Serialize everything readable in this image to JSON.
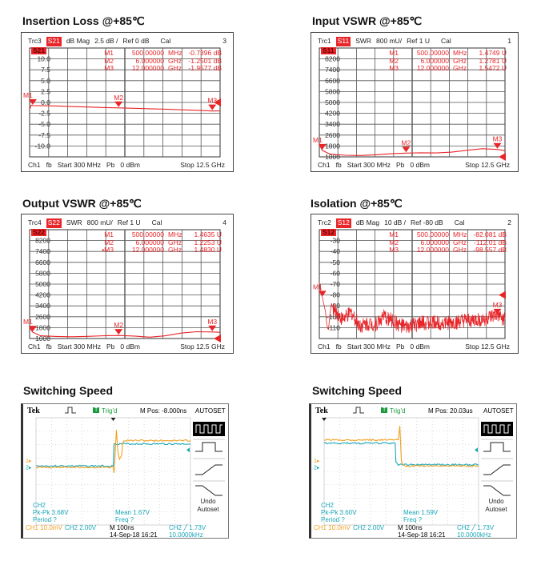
{
  "titles": [
    "Insertion Loss @+85℃",
    "Input VSWR @+85℃",
    "Output VSWR @+85℃",
    "Isolation @+85℃",
    "Switching Speed",
    "Switching Speed"
  ],
  "colors": {
    "trace": "#e8262a",
    "ch1": "#f0a020",
    "ch2": "#1aa6b8",
    "grid": "#555555"
  },
  "chart_data": [
    {
      "type": "line",
      "header": {
        "trc": "Trc3",
        "param": "S21",
        "format": "dB Mag",
        "scale": "2.5 dB /",
        "ref": "Ref 0 dB",
        "cal": "Cal",
        "num": "3"
      },
      "markers": [
        {
          "label": "M1",
          "freq": "500.00000",
          "unit": "MHz",
          "value": "-0.7396 dB"
        },
        {
          "label": "M2",
          "freq": "6.000000",
          "unit": "GHz",
          "value": "-1.2501 dB"
        },
        {
          "label": "M3",
          "freq": "12.000000",
          "unit": "GHz",
          "value": "-1.9577 dB"
        }
      ],
      "footer": {
        "ch": "Ch1",
        "fb": "fb",
        "start": "Start 300 MHz",
        "pb": "Pb",
        "power": "0 dBm",
        "stop": "Stop 12.5 GHz"
      },
      "y_labels": [
        "10.0",
        "7.5",
        "5.0",
        "2.5",
        "0.0",
        "-2.5",
        "-5.0",
        "-7.5",
        "-10.0"
      ],
      "ylim": [
        -12.5,
        12.5
      ],
      "xlim": [
        0.3,
        12.5
      ],
      "ref_value": 0,
      "trace": [
        [
          0.3,
          -1.6
        ],
        [
          0.4,
          -0.6
        ],
        [
          0.5,
          -0.74
        ],
        [
          1,
          -0.75
        ],
        [
          2,
          -0.8
        ],
        [
          3,
          -0.95
        ],
        [
          4,
          -1.05
        ],
        [
          5,
          -1.15
        ],
        [
          6,
          -1.25
        ],
        [
          7,
          -1.35
        ],
        [
          8,
          -1.45
        ],
        [
          9,
          -1.55
        ],
        [
          10,
          -1.7
        ],
        [
          11,
          -1.8
        ],
        [
          12,
          -1.96
        ],
        [
          12.5,
          -1.95
        ]
      ],
      "marker_points": [
        {
          "label": "M1",
          "f": 0.5,
          "v": -0.74
        },
        {
          "label": "M2",
          "f": 6,
          "v": -1.25
        },
        {
          "label": "M3",
          "f": 12,
          "v": -1.96
        }
      ]
    },
    {
      "type": "line",
      "header": {
        "trc": "Trc1",
        "param": "S11",
        "format": "SWR",
        "scale": "800 mU/",
        "ref": "Ref 1 U",
        "cal": "Cal",
        "num": "1"
      },
      "markers": [
        {
          "label": "M1",
          "freq": "500.00000",
          "unit": "MHz",
          "value": "1.4749 U"
        },
        {
          "label": "M2",
          "freq": "6.000000",
          "unit": "GHz",
          "value": "1.2781 U"
        },
        {
          "label": "M3",
          "freq": "12.000000",
          "unit": "GHz",
          "value": "1.5472 U"
        }
      ],
      "footer": {
        "ch": "Ch1",
        "fb": "fb",
        "start": "Start 300 MHz",
        "pb": "Pb",
        "power": "0 dBm",
        "stop": "Stop 12.5 GHz"
      },
      "y_labels": [
        "8200",
        "7400",
        "6600",
        "5800",
        "5000",
        "4200",
        "3400",
        "2600",
        "1800",
        "1000"
      ],
      "ylim": [
        1000,
        9000
      ],
      "xlim": [
        0.3,
        12.5
      ],
      "ref_value": 1000,
      "trace": [
        [
          0.3,
          1900
        ],
        [
          0.5,
          1475
        ],
        [
          1,
          1200
        ],
        [
          2,
          1120
        ],
        [
          3,
          1100
        ],
        [
          4,
          1150
        ],
        [
          5,
          1230
        ],
        [
          6,
          1278
        ],
        [
          7,
          1300
        ],
        [
          8,
          1290
        ],
        [
          9,
          1350
        ],
        [
          10,
          1480
        ],
        [
          11,
          1600
        ],
        [
          12,
          1547
        ],
        [
          12.5,
          1450
        ]
      ],
      "marker_points": [
        {
          "label": "M1",
          "f": 0.5,
          "v": 1475
        },
        {
          "label": "M2",
          "f": 6,
          "v": 1278
        },
        {
          "label": "M3",
          "f": 12,
          "v": 1547
        }
      ]
    },
    {
      "type": "line",
      "header": {
        "trc": "Trc4",
        "param": "S22",
        "format": "SWR",
        "scale": "800 mU/",
        "ref": "Ref 1 U",
        "cal": "Cal",
        "num": "4"
      },
      "markers": [
        {
          "label": "M1",
          "freq": "500.00000",
          "unit": "MHz",
          "value": "1.4635 U"
        },
        {
          "label": "M2",
          "freq": "6.000000",
          "unit": "GHz",
          "value": "1.2253 U"
        },
        {
          "label": "•M3",
          "freq": "12.000000",
          "unit": "GHz",
          "value": "1.4830 U"
        }
      ],
      "footer": {
        "ch": "Ch1",
        "fb": "fb",
        "start": "Start 300 MHz",
        "pb": "Pb",
        "power": "0 dBm",
        "stop": "Stop 12.5 GHz"
      },
      "y_labels": [
        "8200",
        "7400",
        "6600",
        "5800",
        "5000",
        "4200",
        "3400",
        "2600",
        "1800",
        "1000"
      ],
      "ylim": [
        1000,
        9000
      ],
      "xlim": [
        0.3,
        12.5
      ],
      "ref_value": 1000,
      "trace": [
        [
          0.3,
          1800
        ],
        [
          0.5,
          1463
        ],
        [
          1,
          1200
        ],
        [
          2,
          1150
        ],
        [
          3,
          1130
        ],
        [
          4,
          1160
        ],
        [
          5,
          1200
        ],
        [
          6,
          1225
        ],
        [
          7,
          1180
        ],
        [
          8,
          1100
        ],
        [
          9,
          1200
        ],
        [
          10,
          1400
        ],
        [
          11,
          1500
        ],
        [
          12,
          1483
        ],
        [
          12.5,
          1460
        ]
      ],
      "marker_points": [
        {
          "label": "M1",
          "f": 0.5,
          "v": 1463
        },
        {
          "label": "M2",
          "f": 6,
          "v": 1225
        },
        {
          "label": "M3",
          "f": 12,
          "v": 1483
        }
      ]
    },
    {
      "type": "line",
      "header": {
        "trc": "Trc2",
        "param": "S12",
        "format": "dB Mag",
        "scale": "10 dB /",
        "ref": "Ref -80 dB",
        "cal": "Cal",
        "num": "2"
      },
      "markers": [
        {
          "label": "M1",
          "freq": "500.00000",
          "unit": "MHz",
          "value": "-82.081 dB"
        },
        {
          "label": "M2",
          "freq": "6.000000",
          "unit": "GHz",
          "value": "-112.01 dB"
        },
        {
          "label": "M3",
          "freq": "12.000000",
          "unit": "GHz",
          "value": "-98.557 dB"
        }
      ],
      "footer": {
        "ch": "Ch1",
        "fb": "fb",
        "start": "Start 300 MHz",
        "pb": "Pb",
        "power": "0 dBm",
        "stop": "Stop 12.5 GHz"
      },
      "y_labels": [
        "-30",
        "-40",
        "-50",
        "-60",
        "-70",
        "-80",
        "-90",
        "-100",
        "-110"
      ],
      "ylim": [
        -120,
        -20
      ],
      "xlim": [
        0.3,
        12.5
      ],
      "ref_value": -80,
      "noise_db": 7,
      "trace": [
        [
          0.3,
          -68
        ],
        [
          0.4,
          -78
        ],
        [
          0.5,
          -82
        ],
        [
          0.7,
          -95
        ],
        [
          0.8,
          -108
        ],
        [
          0.9,
          -112
        ],
        [
          1.0,
          -97
        ],
        [
          1.1,
          -88
        ],
        [
          1.3,
          -95
        ],
        [
          1.5,
          -97
        ],
        [
          1.8,
          -102
        ],
        [
          2.1,
          -100
        ],
        [
          2.4,
          -96
        ],
        [
          2.7,
          -103
        ],
        [
          3,
          -108
        ],
        [
          3.5,
          -106
        ],
        [
          4,
          -107
        ],
        [
          4.5,
          -100
        ],
        [
          5,
          -103
        ],
        [
          5.5,
          -107
        ],
        [
          6,
          -110
        ],
        [
          7,
          -106
        ],
        [
          8,
          -105
        ],
        [
          9,
          -106
        ],
        [
          10,
          -104
        ],
        [
          11,
          -103
        ],
        [
          12,
          -99
        ],
        [
          12.5,
          -103
        ]
      ],
      "marker_points": [
        {
          "label": "M1",
          "f": 0.5,
          "v": -82
        },
        {
          "label": "M3",
          "f": 12,
          "v": -98.6
        }
      ]
    }
  ],
  "scopes": [
    {
      "tek": "Tek",
      "trig_box": "T",
      "trig": "Trig'd",
      "mpos": "M Pos: -8.000ns",
      "autoset": "AUTOSET",
      "undo": "Undo",
      "undo2": "Autoset",
      "meas_ch": "CH2",
      "pkpk": "Pk-Pk 3.68V",
      "period": "Period ?",
      "mean": "Mean 1.67V",
      "freq": "Freq ?",
      "ch1": "CH1  10.0mV",
      "ch2": "CH2  2.00V",
      "time": "M 100ns",
      "date": "14-Sep-18 16:21",
      "trig_lvl": "CH2 ╱ 1.73V",
      "trig_freq": "10.0000kHz",
      "ch1_trace": [
        [
          0,
          3.7
        ],
        [
          5.0,
          3.7
        ],
        [
          5.05,
          4.1
        ],
        [
          5.1,
          3.3
        ],
        [
          5.2,
          0.9
        ],
        [
          5.3,
          2.5
        ],
        [
          5.4,
          3.1
        ],
        [
          5.55,
          2.8
        ],
        [
          5.6,
          1.9
        ],
        [
          5.7,
          1.7
        ],
        [
          10,
          1.7
        ]
      ],
      "ch2_trace": [
        [
          0,
          3.6
        ],
        [
          5.0,
          3.6
        ],
        [
          5.05,
          2.0
        ],
        [
          5.1,
          1.95
        ],
        [
          10,
          1.95
        ]
      ]
    },
    {
      "tek": "Tek",
      "trig_box": "T",
      "trig": "Trig'd",
      "mpos": "M Pos: 20.03us",
      "autoset": "AUTOSET",
      "undo": "Undo",
      "undo2": "Autoset",
      "meas_ch": "CH2",
      "pkpk": "Pk-Pk 3.60V",
      "period": "Period ?",
      "mean": "Mean 1.59V",
      "freq": "Freq ?",
      "ch1": "CH1  10.0mV",
      "ch2": "CH2  2.00V",
      "time": "M 100ns",
      "date": "14-Sep-18 16:21",
      "trig_lvl": "CH2 ╱ 1.73V",
      "trig_freq": "10.0000kHz",
      "ch1_trace": [
        [
          0,
          1.65
        ],
        [
          4.8,
          1.65
        ],
        [
          4.85,
          1.2
        ],
        [
          4.9,
          0.6
        ],
        [
          4.95,
          1.8
        ],
        [
          5.0,
          3.2
        ],
        [
          5.1,
          3.5
        ],
        [
          5.2,
          3.6
        ],
        [
          10,
          3.6
        ]
      ],
      "ch2_trace": [
        [
          0,
          1.9
        ],
        [
          4.6,
          1.9
        ],
        [
          4.65,
          3.3
        ],
        [
          4.8,
          3.5
        ],
        [
          10,
          3.5
        ]
      ]
    }
  ]
}
